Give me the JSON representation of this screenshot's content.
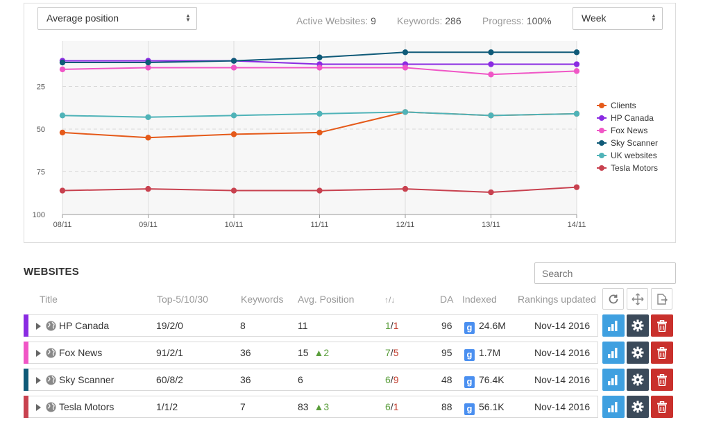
{
  "toolbar": {
    "metric_select": "Average position",
    "active_label": "Active Websites:",
    "active_value": "9",
    "keywords_label": "Keywords:",
    "keywords_value": "286",
    "progress_label": "Progress:",
    "progress_value": "100%",
    "period_select": "Week"
  },
  "chart_data": {
    "type": "line",
    "x": [
      "08/11",
      "09/11",
      "10/11",
      "11/11",
      "12/11",
      "13/11",
      "14/11"
    ],
    "y_ticks": [
      "25",
      "50",
      "75",
      "100"
    ],
    "ylim": [
      100,
      0
    ],
    "reversed_y": true,
    "grid": true,
    "legend_position": "right",
    "series": [
      {
        "name": "Clients",
        "color": "#e55a1a",
        "values": [
          52,
          55,
          53,
          52,
          40,
          42,
          41
        ]
      },
      {
        "name": "HP Canada",
        "color": "#8a2be2",
        "values": [
          10,
          10,
          10,
          12,
          12,
          12,
          12
        ]
      },
      {
        "name": "Fox News",
        "color": "#f056c6",
        "values": [
          15,
          14,
          14,
          14,
          14,
          18,
          16
        ]
      },
      {
        "name": "Sky Scanner",
        "color": "#0f5a78",
        "values": [
          11,
          11,
          10,
          8,
          5,
          5,
          5
        ]
      },
      {
        "name": "UK websites",
        "color": "#4fb3b8",
        "values": [
          42,
          43,
          42,
          41,
          40,
          42,
          41
        ]
      },
      {
        "name": "Tesla Motors",
        "color": "#c8414f",
        "values": [
          86,
          85,
          86,
          86,
          85,
          87,
          84
        ]
      }
    ]
  },
  "websites": {
    "title": "WEBSITES",
    "search_placeholder": "Search",
    "columns": {
      "title": "Title",
      "top": "Top-5/10/30",
      "keywords": "Keywords",
      "avg": "Avg. Position",
      "updown": "↑/↓",
      "da": "DA",
      "indexed": "Indexed",
      "updated": "Rankings updated"
    },
    "rows": [
      {
        "name": "HP Canada",
        "color": "#8a2be2",
        "top": "19/2/0",
        "keywords": "8",
        "avg": "11",
        "change": "",
        "up": "1",
        "down": "1",
        "da": "96",
        "indexed": "24.6M",
        "updated": "Nov-14 2016"
      },
      {
        "name": "Fox News",
        "color": "#f056c6",
        "top": "91/2/1",
        "keywords": "36",
        "avg": "15",
        "change": "▲2",
        "up": "7",
        "down": "5",
        "da": "95",
        "indexed": "1.7M",
        "updated": "Nov-14 2016"
      },
      {
        "name": "Sky Scanner",
        "color": "#0f5a78",
        "top": "60/8/2",
        "keywords": "36",
        "avg": "6",
        "change": "",
        "up": "6",
        "down": "9",
        "da": "48",
        "indexed": "76.4K",
        "updated": "Nov-14 2016"
      },
      {
        "name": "Tesla Motors",
        "color": "#c8414f",
        "top": "1/1/2",
        "keywords": "7",
        "avg": "83",
        "change": "▲3",
        "up": "6",
        "down": "1",
        "da": "88",
        "indexed": "56.1K",
        "updated": "Nov-14 2016"
      }
    ]
  },
  "icons": {
    "google": "g",
    "refresh": "refresh-icon",
    "move": "move-icon",
    "export": "export-icon",
    "stats": "bar-chart-icon",
    "settings": "gear-icon",
    "delete": "trash-icon",
    "globe": "globe-icon"
  }
}
